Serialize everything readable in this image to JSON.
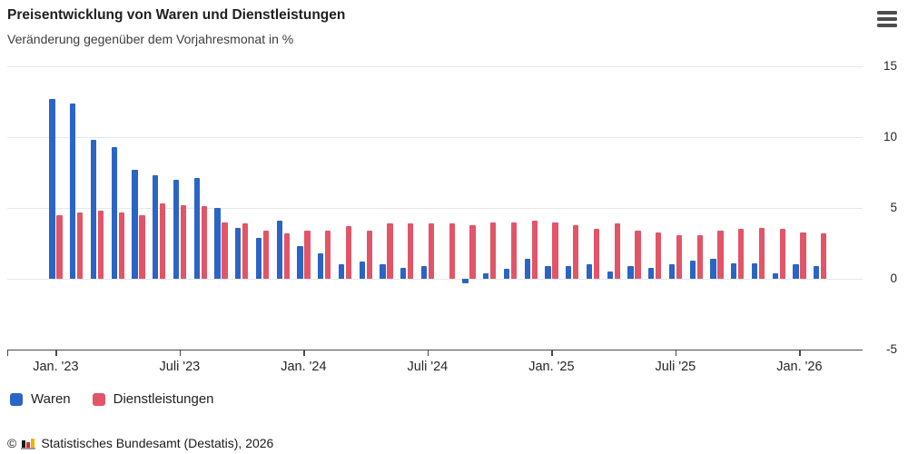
{
  "header": {
    "title": "Preisentwicklung von Waren und Dienstleistungen",
    "subtitle": "Veränderung gegenüber dem Vorjahresmonat in %"
  },
  "toolbar": {
    "menu_icon": "hamburger-icon"
  },
  "chart_data": {
    "type": "bar",
    "title": "Preisentwicklung von Waren und Dienstleistungen",
    "subtitle": "Veränderung gegenüber dem Vorjahresmonat in %",
    "unit": "%",
    "categories": [
      "2023-01",
      "2023-02",
      "2023-03",
      "2023-04",
      "2023-05",
      "2023-06",
      "2023-07",
      "2023-08",
      "2023-09",
      "2023-10",
      "2023-11",
      "2023-12",
      "2024-01",
      "2024-02",
      "2024-03",
      "2024-04",
      "2024-05",
      "2024-06",
      "2024-07",
      "2024-08",
      "2024-09",
      "2024-10",
      "2024-11",
      "2024-12",
      "2025-01",
      "2025-02",
      "2025-03",
      "2025-04",
      "2025-05",
      "2025-06",
      "2025-07",
      "2025-08",
      "2025-09",
      "2025-10",
      "2025-11",
      "2025-12",
      "2026-01",
      "2026-02"
    ],
    "series": [
      {
        "name": "Waren",
        "color": "#2a65c5",
        "values": [
          12.7,
          12.4,
          9.8,
          9.3,
          7.7,
          7.3,
          7.0,
          7.1,
          5.0,
          3.6,
          2.9,
          4.1,
          2.3,
          1.8,
          1.0,
          1.2,
          1.0,
          0.8,
          0.9,
          0.0,
          -0.3,
          0.4,
          0.7,
          1.4,
          0.9,
          0.9,
          1.0,
          0.5,
          0.9,
          0.8,
          1.0,
          1.3,
          1.4,
          1.1,
          1.1,
          0.4,
          1.0,
          0.9
        ]
      },
      {
        "name": "Dienstleistungen",
        "color": "#e25568",
        "values": [
          4.5,
          4.7,
          4.8,
          4.7,
          4.5,
          5.3,
          5.2,
          5.1,
          4.0,
          3.9,
          3.4,
          3.2,
          3.4,
          3.4,
          3.7,
          3.4,
          3.9,
          3.9,
          3.9,
          3.9,
          3.8,
          4.0,
          4.0,
          4.1,
          4.0,
          3.8,
          3.5,
          3.9,
          3.4,
          3.3,
          3.1,
          3.1,
          3.4,
          3.5,
          3.6,
          3.5,
          3.3,
          3.2
        ]
      }
    ],
    "ylim": [
      -5,
      15
    ],
    "yticks": [
      15,
      10,
      5,
      0,
      -5
    ],
    "xticks": [
      {
        "index": 0,
        "label": "Jan. '23"
      },
      {
        "index": 6,
        "label": "Juli '23"
      },
      {
        "index": 12,
        "label": "Jan. '24"
      },
      {
        "index": 18,
        "label": "Juli '24"
      },
      {
        "index": 24,
        "label": "Jan. '25"
      },
      {
        "index": 30,
        "label": "Juli '25"
      },
      {
        "index": 36,
        "label": "Jan. '26"
      }
    ],
    "grid": true,
    "legend_position": "bottom-left"
  },
  "legend": {
    "items": [
      {
        "label": "Waren",
        "color": "#2a65c5"
      },
      {
        "label": "Dienstleistungen",
        "color": "#e25568"
      }
    ]
  },
  "footer": {
    "copyright_symbol": "©",
    "logo": "destatis-bars-icon",
    "source": "Statistisches Bundesamt (Destatis), 2026",
    "logo_colors": {
      "bar1": "#1a1a1a",
      "bar2": "#d22f2f",
      "bar3": "#f0b200",
      "baseline": "#9a9a9a"
    }
  },
  "colors": {
    "background": "#ffffff",
    "gridline": "#e7e7e7",
    "axis_line": "#4a4a4a",
    "tick_label": "#262626",
    "menu_icon": "#4d4d4d"
  }
}
